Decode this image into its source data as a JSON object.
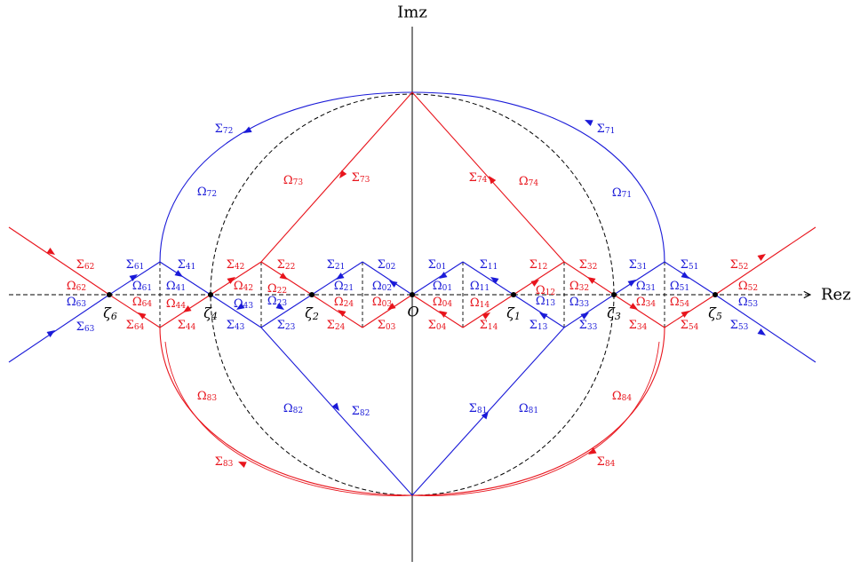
{
  "axes": {
    "y_label": "Imz",
    "x_label": "Rez",
    "origin_label": "O"
  },
  "points": [
    "ζ6",
    "ζ4",
    "ζ2",
    "ζ1",
    "ζ3",
    "ζ5"
  ],
  "colors": {
    "red": "#e8141c",
    "blue": "#1a1ad8",
    "black": "#000000"
  },
  "labels": {
    "s72": "Σ72",
    "s71": "Σ71",
    "s73": "Σ73",
    "s74": "Σ74",
    "o72": "Ω72",
    "o73": "Ω73",
    "o74": "Ω74",
    "o71": "Ω71",
    "s62": "Σ62",
    "s61": "Σ61",
    "s41": "Σ41",
    "s42": "Σ42",
    "s22": "Σ22",
    "s21": "Σ21",
    "s02": "Σ02",
    "s01": "Σ01",
    "s11": "Σ11",
    "s12": "Σ12",
    "s32": "Σ32",
    "s31": "Σ31",
    "s51": "Σ51",
    "s52": "Σ52",
    "o62": "Ω62",
    "o61": "Ω61",
    "o41": "Ω41",
    "o42": "Ω42",
    "o22": "Ω22",
    "o21": "Ω21",
    "o02": "Ω02",
    "o01": "Ω01",
    "o11": "Ω11",
    "o12": "Ω12",
    "o32": "Ω32",
    "o31": "Ω31",
    "o51": "Ω51",
    "o52": "Ω52",
    "o63": "Ω63",
    "o64": "Ω64",
    "o44": "Ω44",
    "o43": "Ω43",
    "o23": "Ω23",
    "o24": "Ω24",
    "o03": "Ω03",
    "o04": "Ω04",
    "o14": "Ω14",
    "o13": "Ω13",
    "o33": "Ω33",
    "o34": "Ω34",
    "o54": "Ω54",
    "o53": "Ω53",
    "s63": "Σ63",
    "s64": "Σ64",
    "s44": "Σ44",
    "s43": "Σ43",
    "s23": "Σ23",
    "s24": "Σ24",
    "s03": "Σ03",
    "s04": "Σ04",
    "s14": "Σ14",
    "s13": "Σ13",
    "s33": "Σ33",
    "s34": "Σ34",
    "s54": "Σ54",
    "s53": "Σ53",
    "o83": "Ω83",
    "o82": "Ω82",
    "o81": "Ω81",
    "o84": "Ω84",
    "s82": "Σ82",
    "s81": "Σ81",
    "s83": "Σ83",
    "s84": "Σ84"
  }
}
